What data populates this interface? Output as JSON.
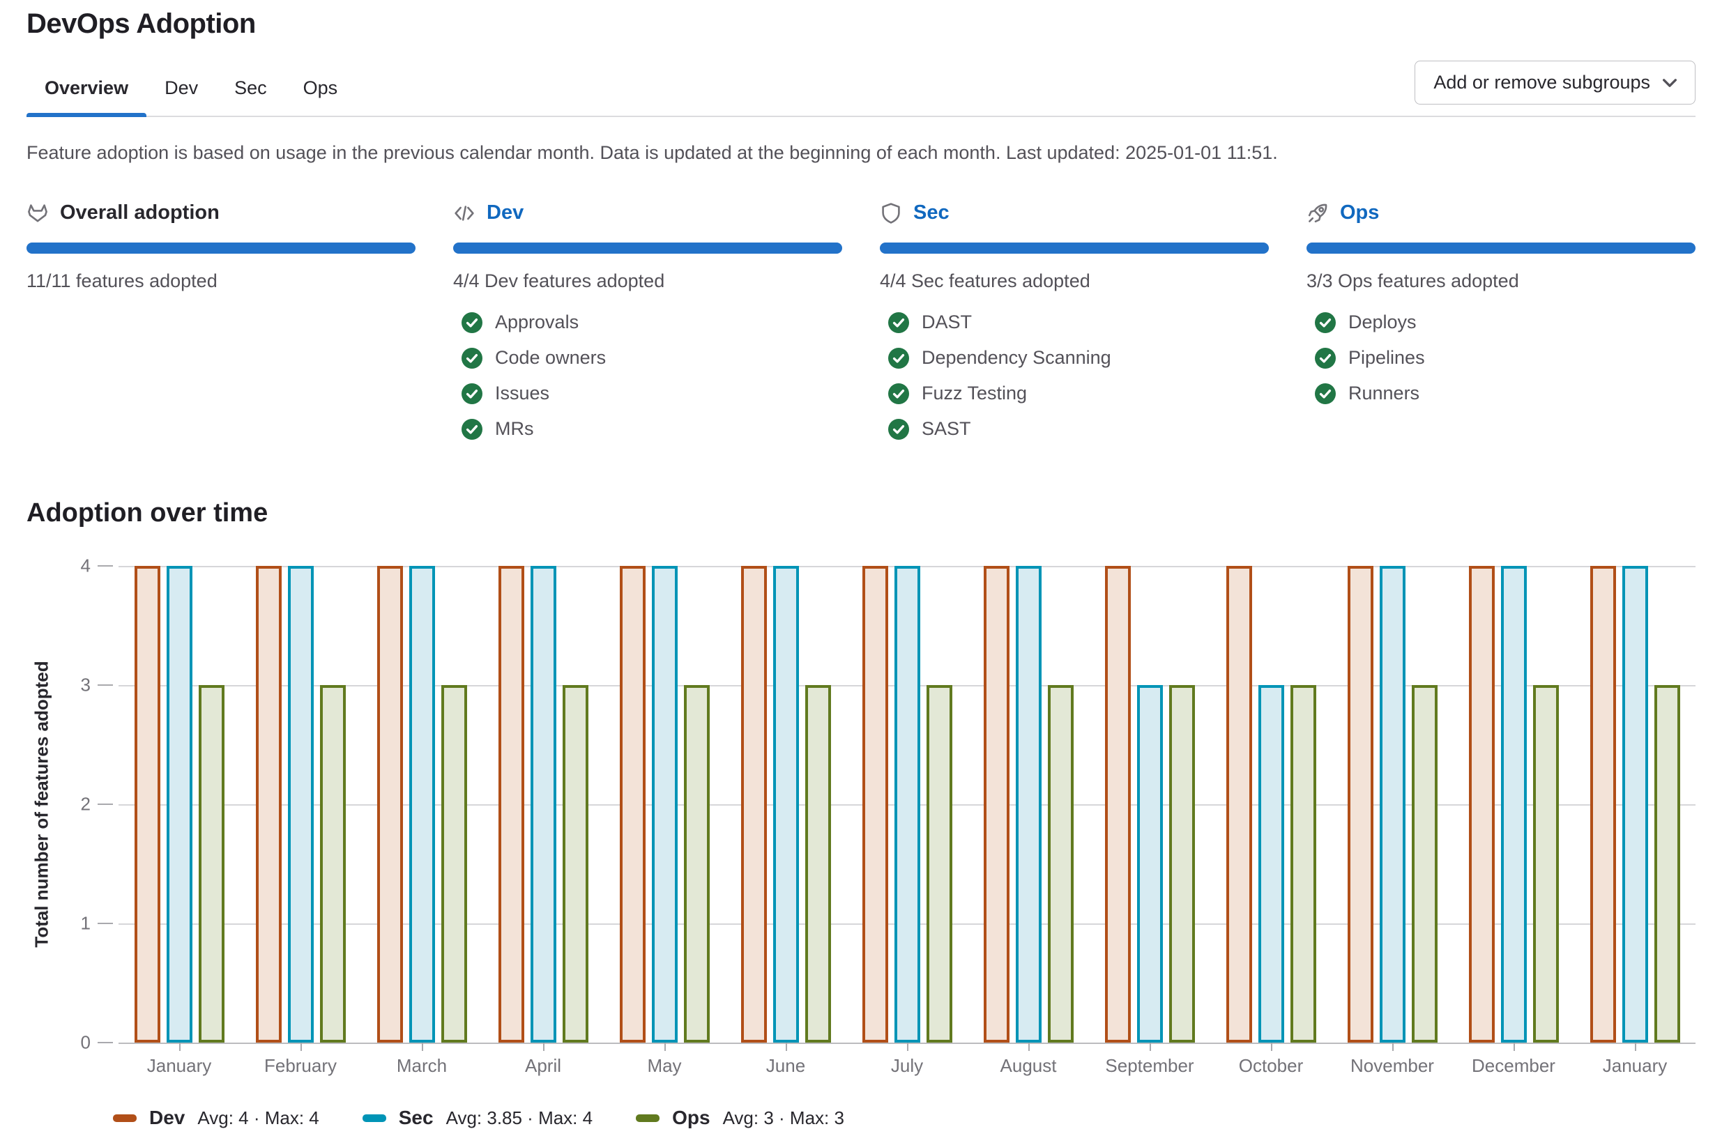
{
  "page": {
    "title": "DevOps Adoption"
  },
  "tabs": [
    {
      "label": "Overview",
      "active": true
    },
    {
      "label": "Dev",
      "active": false
    },
    {
      "label": "Sec",
      "active": false
    },
    {
      "label": "Ops",
      "active": false
    }
  ],
  "subgroups_button": {
    "label": "Add or remove subgroups"
  },
  "info_text": "Feature adoption is based on usage in the previous calendar month. Data is updated at the beginning of each month. Last updated: 2025-01-01 11:51.",
  "summary_cards": [
    {
      "title": "Overall adoption",
      "icon": "tanuki-icon",
      "is_link": false,
      "count_text": "11/11 features adopted",
      "features": []
    },
    {
      "title": "Dev",
      "icon": "code-icon",
      "is_link": true,
      "count_text": "4/4 Dev features adopted",
      "features": [
        "Approvals",
        "Code owners",
        "Issues",
        "MRs"
      ]
    },
    {
      "title": "Sec",
      "icon": "shield-icon",
      "is_link": true,
      "count_text": "4/4 Sec features adopted",
      "features": [
        "DAST",
        "Dependency Scanning",
        "Fuzz Testing",
        "SAST"
      ]
    },
    {
      "title": "Ops",
      "icon": "rocket-icon",
      "is_link": true,
      "count_text": "3/3 Ops features adopted",
      "features": [
        "Deploys",
        "Pipelines",
        "Runners"
      ]
    }
  ],
  "chart_data": {
    "type": "bar",
    "title": "Adoption over time",
    "ylabel": "Total number of features adopted",
    "ylim": [
      0,
      4
    ],
    "y_ticks": [
      4,
      3,
      2,
      1,
      0
    ],
    "grid": true,
    "legend_position": "bottom",
    "categories": [
      "January",
      "February",
      "March",
      "April",
      "May",
      "June",
      "July",
      "August",
      "September",
      "October",
      "November",
      "December",
      "January"
    ],
    "series": [
      {
        "name": "Dev",
        "color": "#b14f18",
        "fill": "#f3e3d8",
        "values": [
          4,
          4,
          4,
          4,
          4,
          4,
          4,
          4,
          4,
          4,
          4,
          4,
          4
        ]
      },
      {
        "name": "Sec",
        "color": "#0094b6",
        "fill": "#d7ebf2",
        "values": [
          4,
          4,
          4,
          4,
          4,
          4,
          4,
          4,
          3,
          3,
          4,
          4,
          4
        ]
      },
      {
        "name": "Ops",
        "color": "#617a1f",
        "fill": "#e3e8d6",
        "values": [
          3,
          3,
          3,
          3,
          3,
          3,
          3,
          3,
          3,
          3,
          3,
          3,
          3
        ]
      }
    ]
  },
  "legend": [
    {
      "name": "Dev",
      "stats": "Avg: 4 · Max: 4",
      "color": "#b14f18"
    },
    {
      "name": "Sec",
      "stats": "Avg: 3.85 · Max: 4",
      "color": "#0094b6"
    },
    {
      "name": "Ops",
      "stats": "Avg: 3 · Max: 3",
      "color": "#617a1f"
    }
  ],
  "colors": {
    "accent_blue": "#2272c9",
    "link_blue": "#1068bf",
    "check_green": "#217645",
    "icon_gray": "#737278"
  }
}
